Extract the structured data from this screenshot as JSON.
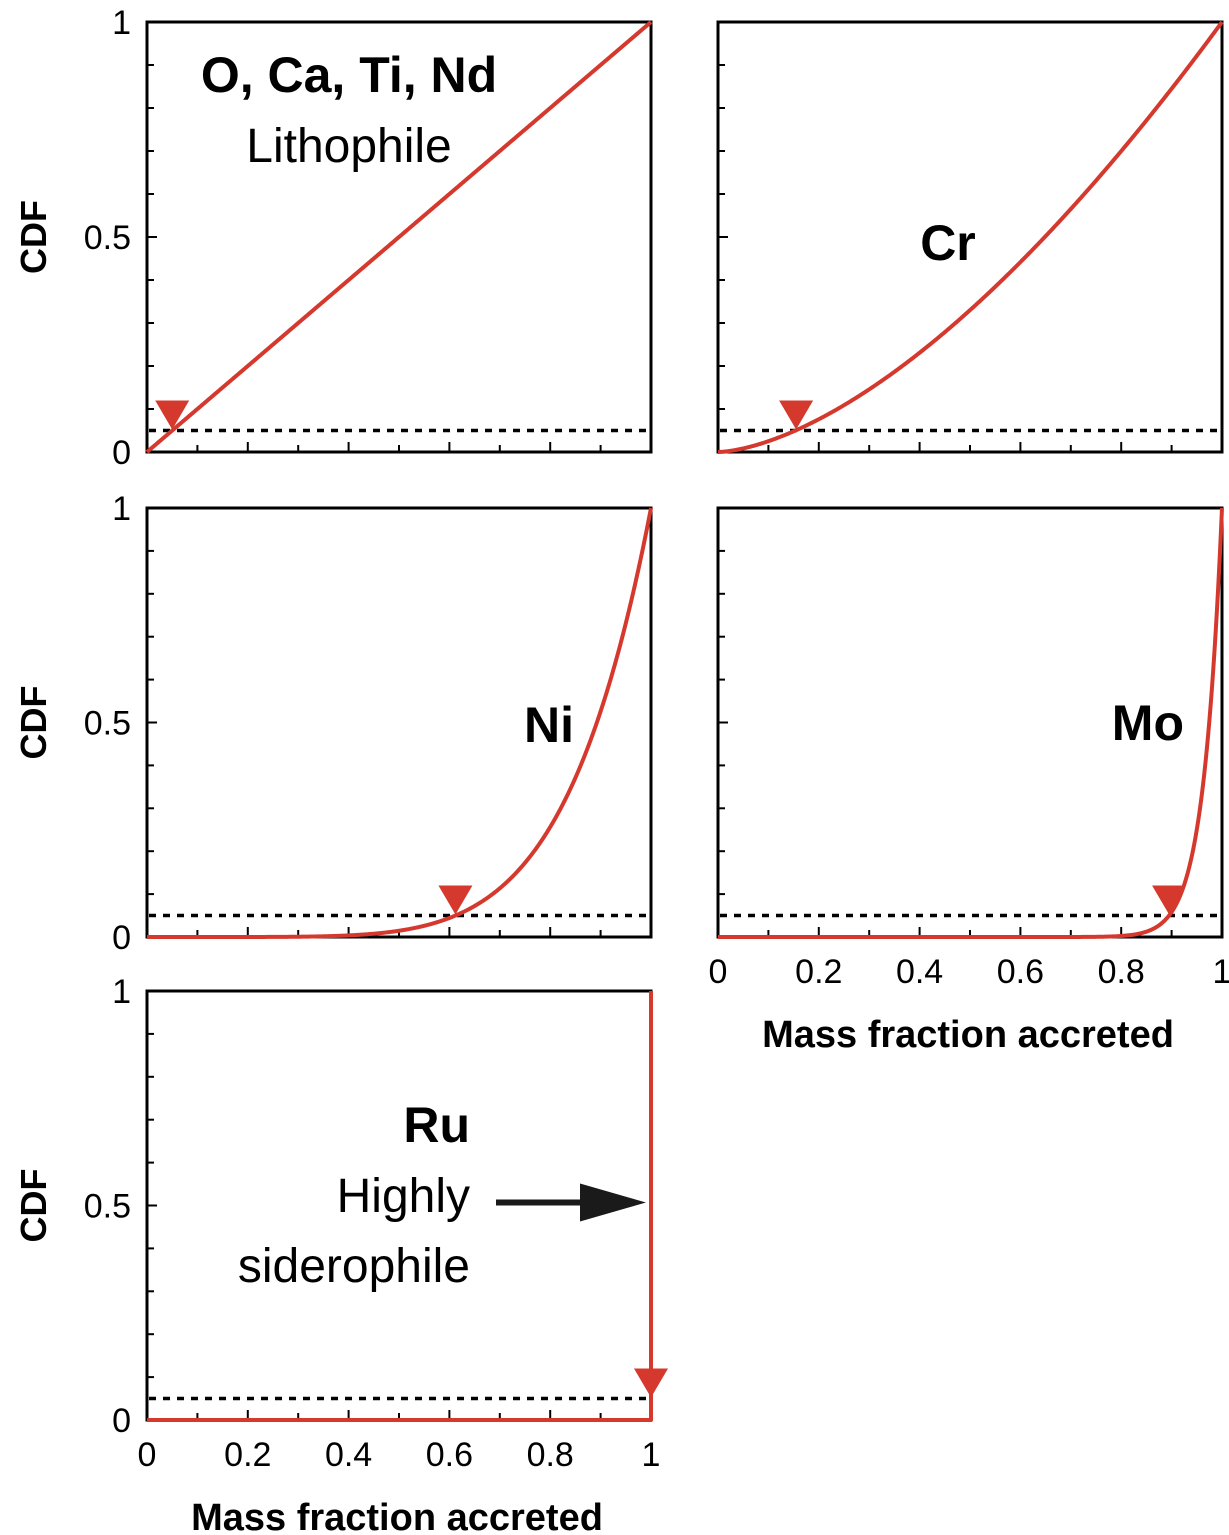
{
  "chart_data": [
    {
      "type": "line",
      "panel": "O, Ca, Ti, Nd",
      "label": "O, Ca, Ti, Nd",
      "sublabel": "Lithophile",
      "ylabel": "CDF",
      "xlabel": "",
      "xlim": [
        0,
        1
      ],
      "ylim": [
        0,
        1
      ],
      "yticks": [
        "0",
        "0.5",
        "1"
      ],
      "xticks": [],
      "exponent": 1,
      "threshold": 0.05,
      "marker_x": 0.05
    },
    {
      "type": "line",
      "panel": "Cr",
      "label": "Cr",
      "sublabel": "",
      "ylabel": "",
      "xlabel": "",
      "xlim": [
        0,
        1
      ],
      "ylim": [
        0,
        1
      ],
      "yticks": [],
      "xticks": [],
      "exponent": 1.6,
      "threshold": 0.05,
      "marker_x": 0.155
    },
    {
      "type": "line",
      "panel": "Ni",
      "label": "Ni",
      "sublabel": "",
      "ylabel": "CDF",
      "xlabel": "",
      "xlim": [
        0,
        1
      ],
      "ylim": [
        0,
        1
      ],
      "yticks": [
        "0",
        "0.5",
        "1"
      ],
      "xticks": [],
      "exponent": 6.1,
      "threshold": 0.05,
      "marker_x": 0.612
    },
    {
      "type": "line",
      "panel": "Mo",
      "label": "Mo",
      "sublabel": "",
      "ylabel": "",
      "xlabel": "Mass fraction accreted",
      "xlim": [
        0,
        1
      ],
      "ylim": [
        0,
        1
      ],
      "yticks": [],
      "xticks": [
        "0",
        "0.2",
        "0.4",
        "0.6",
        "0.8",
        "1"
      ],
      "exponent": 27,
      "threshold": 0.05,
      "marker_x": 0.895
    },
    {
      "type": "line",
      "panel": "Ru",
      "label": "Ru",
      "sublabel": "Highly siderophile",
      "sublabel_lines": [
        "Highly",
        "siderophile"
      ],
      "ylabel": "CDF",
      "xlabel": "Mass fraction accreted",
      "xlim": [
        0,
        1
      ],
      "ylim": [
        0,
        1
      ],
      "yticks": [
        "0",
        "0.5",
        "1"
      ],
      "xticks": [
        "0",
        "0.2",
        "0.4",
        "0.6",
        "0.8",
        "1"
      ],
      "exponent": 2000,
      "threshold": 0.05,
      "marker_x": 1.0,
      "arrow_y": 0.5
    }
  ],
  "colors": {
    "curve": "#d5392e",
    "threshold": "#000000",
    "arrow": "#1a1a1a"
  }
}
